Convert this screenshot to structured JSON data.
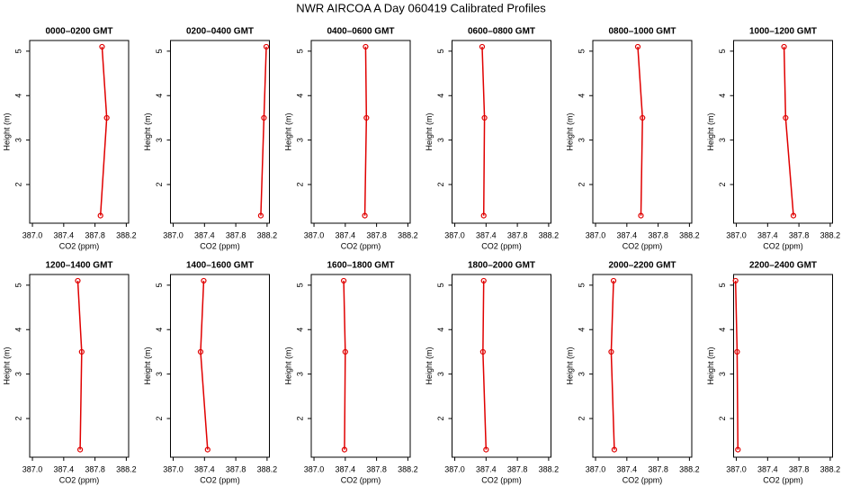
{
  "title": "NWR AIRCOA A  Day 060419  Calibrated Profiles",
  "chart_data": [
    {
      "type": "line",
      "title": "0000–0200 GMT",
      "x": [
        387.87,
        387.95,
        387.89
      ],
      "values": [
        1.3,
        3.5,
        5.1
      ],
      "color": "#e00000",
      "xlabel": "CO2 (ppm)",
      "ylabel": "Height (m)",
      "xlim": [
        386.965,
        388.23
      ],
      "ylim": [
        1.13,
        5.24
      ],
      "xticks": [
        {
          "value": 387.0,
          "label": "387.0"
        },
        387.4,
        387.8,
        388.2
      ],
      "yticks": [
        2,
        3,
        4,
        5
      ]
    },
    {
      "type": "line",
      "title": "0200–0400 GMT",
      "x": [
        388.12,
        388.16,
        388.19
      ],
      "values": [
        1.3,
        3.5,
        5.1
      ],
      "color": "#e00000",
      "xlabel": "CO2 (ppm)",
      "ylabel": "Height (m)",
      "xlim": [
        386.965,
        388.23
      ],
      "ylim": [
        1.13,
        5.24
      ],
      "xticks": [
        {
          "value": 387.0,
          "label": "387.0"
        },
        387.4,
        387.8,
        388.2
      ],
      "yticks": [
        2,
        3,
        4,
        5
      ]
    },
    {
      "type": "line",
      "title": "0400–0600 GMT",
      "x": [
        387.65,
        387.67,
        387.66
      ],
      "values": [
        1.3,
        3.5,
        5.1
      ],
      "color": "#e00000",
      "xlabel": "CO2 (ppm)",
      "ylabel": "Height (m)",
      "xlim": [
        386.965,
        388.23
      ],
      "ylim": [
        1.13,
        5.24
      ],
      "xticks": [
        {
          "value": 387.0,
          "label": "387.0"
        },
        387.4,
        387.8,
        388.2
      ],
      "yticks": [
        2,
        3,
        4,
        5
      ]
    },
    {
      "type": "line",
      "title": "0600–0800 GMT",
      "x": [
        387.37,
        387.38,
        387.35
      ],
      "values": [
        1.3,
        3.5,
        5.1
      ],
      "color": "#e00000",
      "xlabel": "CO2 (ppm)",
      "ylabel": "Height (m)",
      "xlim": [
        386.965,
        388.23
      ],
      "ylim": [
        1.13,
        5.24
      ],
      "xticks": [
        {
          "value": 387.0,
          "label": "387.0"
        },
        387.4,
        387.8,
        388.2
      ],
      "yticks": [
        2,
        3,
        4,
        5
      ]
    },
    {
      "type": "line",
      "title": "0800–1000 GMT",
      "x": [
        387.58,
        387.6,
        387.54
      ],
      "values": [
        1.3,
        3.5,
        5.1
      ],
      "color": "#e00000",
      "xlabel": "CO2 (ppm)",
      "ylabel": "Height (m)",
      "xlim": [
        386.965,
        388.23
      ],
      "ylim": [
        1.13,
        5.24
      ],
      "xticks": [
        {
          "value": 387.0,
          "label": "387.0"
        },
        387.4,
        387.8,
        388.2
      ],
      "yticks": [
        2,
        3,
        4,
        5
      ]
    },
    {
      "type": "line",
      "title": "1000–1200 GMT",
      "x": [
        387.73,
        387.63,
        387.61
      ],
      "values": [
        1.3,
        3.5,
        5.1
      ],
      "color": "#e00000",
      "xlabel": "CO2 (ppm)",
      "ylabel": "Height (m)",
      "xlim": [
        386.965,
        388.23
      ],
      "ylim": [
        1.13,
        5.24
      ],
      "xticks": [
        {
          "value": 387.0,
          "label": "387.0"
        },
        387.4,
        387.8,
        388.2
      ],
      "yticks": [
        2,
        3,
        4,
        5
      ]
    },
    {
      "type": "line",
      "title": "1200–1400 GMT",
      "x": [
        387.61,
        387.63,
        387.58
      ],
      "values": [
        1.3,
        3.5,
        5.1
      ],
      "color": "#e00000",
      "xlabel": "CO2 (ppm)",
      "ylabel": "Height (m)",
      "xlim": [
        386.965,
        388.23
      ],
      "ylim": [
        1.13,
        5.24
      ],
      "xticks": [
        {
          "value": 387.0,
          "label": "387.0"
        },
        387.4,
        387.8,
        388.2
      ],
      "yticks": [
        2,
        3,
        4,
        5
      ]
    },
    {
      "type": "line",
      "title": "1400–1600 GMT",
      "x": [
        387.44,
        387.35,
        387.39
      ],
      "values": [
        1.3,
        3.5,
        5.1
      ],
      "color": "#e00000",
      "xlabel": "CO2 (ppm)",
      "ylabel": "Height (m)",
      "xlim": [
        386.965,
        388.23
      ],
      "ylim": [
        1.13,
        5.24
      ],
      "xticks": [
        {
          "value": 387.0,
          "label": "387.0"
        },
        387.4,
        387.8,
        388.2
      ],
      "yticks": [
        2,
        3,
        4,
        5
      ]
    },
    {
      "type": "line",
      "title": "1600–1800 GMT",
      "x": [
        387.39,
        387.4,
        387.38
      ],
      "values": [
        1.3,
        3.5,
        5.1
      ],
      "color": "#e00000",
      "xlabel": "CO2 (ppm)",
      "ylabel": "Height (m)",
      "xlim": [
        386.965,
        388.23
      ],
      "ylim": [
        1.13,
        5.24
      ],
      "xticks": [
        {
          "value": 387.0,
          "label": "387.0"
        },
        387.4,
        387.8,
        388.2
      ],
      "yticks": [
        2,
        3,
        4,
        5
      ]
    },
    {
      "type": "line",
      "title": "1800–2000 GMT",
      "x": [
        387.4,
        387.36,
        387.37
      ],
      "values": [
        1.3,
        3.5,
        5.1
      ],
      "color": "#e00000",
      "xlabel": "CO2 (ppm)",
      "ylabel": "Height (m)",
      "xlim": [
        386.965,
        388.23
      ],
      "ylim": [
        1.13,
        5.24
      ],
      "xticks": [
        {
          "value": 387.0,
          "label": "387.0"
        },
        387.4,
        387.8,
        388.2
      ],
      "yticks": [
        2,
        3,
        4,
        5
      ]
    },
    {
      "type": "line",
      "title": "2000–2200 GMT",
      "x": [
        387.24,
        387.2,
        387.23
      ],
      "values": [
        1.3,
        3.5,
        5.1
      ],
      "color": "#e00000",
      "xlabel": "CO2 (ppm)",
      "ylabel": "Height (m)",
      "xlim": [
        386.965,
        388.23
      ],
      "ylim": [
        1.13,
        5.24
      ],
      "xticks": [
        {
          "value": 387.0,
          "label": "387.0"
        },
        387.4,
        387.8,
        388.2
      ],
      "yticks": [
        2,
        3,
        4,
        5
      ]
    },
    {
      "type": "line",
      "title": "2200–2400 GMT",
      "x": [
        387.02,
        387.01,
        386.99
      ],
      "values": [
        1.3,
        3.5,
        5.1
      ],
      "color": "#e00000",
      "xlabel": "CO2 (ppm)",
      "ylabel": "Height (m)",
      "xlim": [
        386.965,
        388.23
      ],
      "ylim": [
        1.13,
        5.24
      ],
      "xticks": [
        {
          "value": 387.0,
          "label": "387.0"
        },
        387.4,
        387.8,
        388.2
      ],
      "yticks": [
        2,
        3,
        4,
        5
      ]
    }
  ]
}
